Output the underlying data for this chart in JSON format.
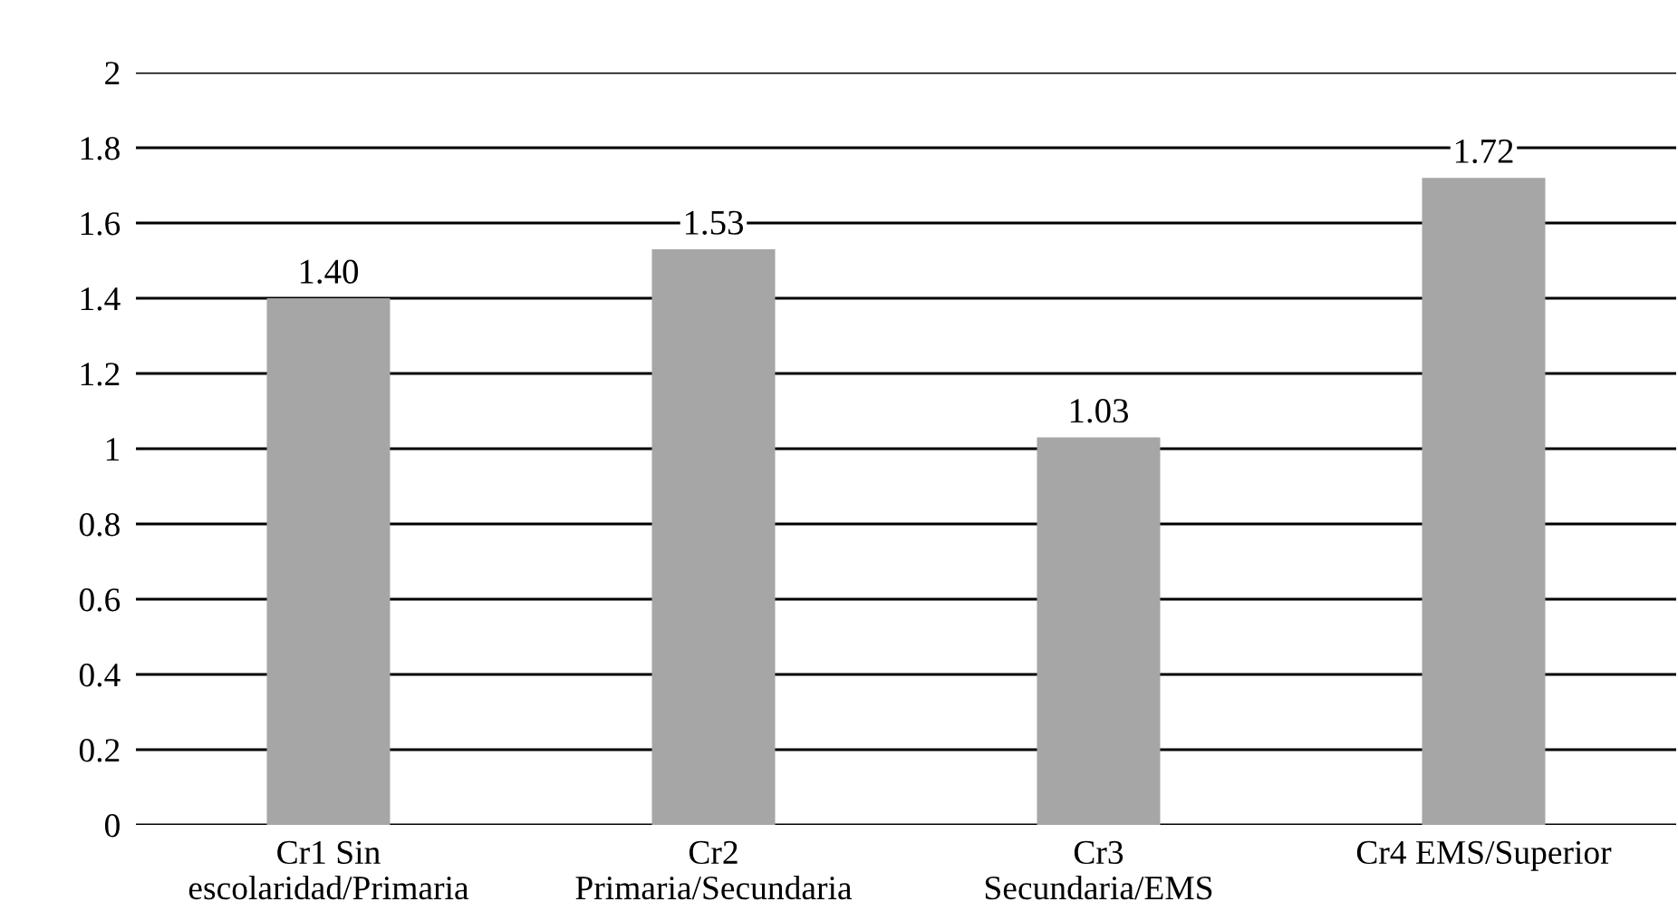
{
  "chart_data": {
    "type": "bar",
    "categories": [
      "Cr1 Sin\nescolaridad/Primaria",
      "Cr2\nPrimaria/Secundaria",
      "Cr3\nSecundaria/EMS",
      "Cr4 EMS/Superior"
    ],
    "values": [
      1.4,
      1.53,
      1.03,
      1.72
    ],
    "value_labels": [
      "1.40",
      "1.53",
      "1.03",
      "1.72"
    ],
    "color": "#a6a6a6",
    "ylim": [
      0,
      2
    ],
    "yticks": [
      0,
      0.2,
      0.4,
      0.6,
      0.8,
      1,
      1.2,
      1.4,
      1.6,
      1.8,
      2
    ],
    "grid": "y"
  }
}
